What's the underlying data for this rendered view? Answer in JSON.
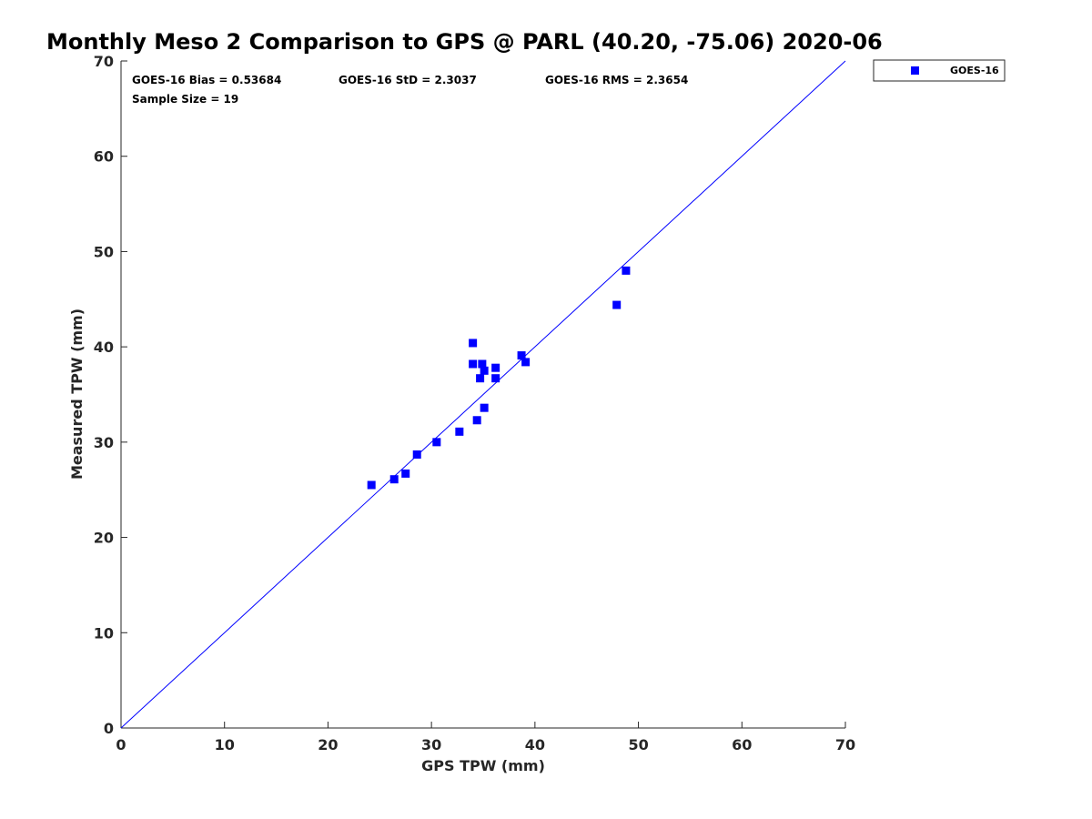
{
  "chart_data": {
    "type": "scatter",
    "title": "Monthly Meso 2 Comparison to GPS @ PARL (40.20, -75.06) 2020-06",
    "xlabel": "GPS TPW (mm)",
    "ylabel": "Measured TPW (mm)",
    "xlim": [
      0,
      70
    ],
    "ylim": [
      0,
      70
    ],
    "xticks": [
      0,
      10,
      20,
      30,
      40,
      50,
      60,
      70
    ],
    "yticks": [
      0,
      10,
      20,
      30,
      40,
      50,
      60,
      70
    ],
    "grid": false,
    "legend_position": "outside-top-right",
    "reference_line": {
      "from": [
        0,
        0
      ],
      "to": [
        70,
        70
      ],
      "color": "#0000ff"
    },
    "annotations": [
      "GOES-16 Bias = 0.53684",
      "GOES-16 StD = 2.3037",
      "GOES-16 RMS = 2.3654",
      "Sample Size = 19"
    ],
    "series": [
      {
        "name": "GOES-16",
        "color": "#0000ff",
        "marker": "square",
        "points": [
          [
            24.2,
            25.5
          ],
          [
            26.4,
            26.1
          ],
          [
            27.5,
            26.7
          ],
          [
            28.6,
            28.7
          ],
          [
            30.5,
            30.0
          ],
          [
            32.7,
            31.1
          ],
          [
            34.0,
            40.4
          ],
          [
            34.0,
            38.2
          ],
          [
            34.4,
            32.3
          ],
          [
            34.7,
            36.7
          ],
          [
            34.9,
            38.2
          ],
          [
            35.1,
            37.5
          ],
          [
            35.1,
            33.6
          ],
          [
            36.2,
            37.8
          ],
          [
            36.2,
            36.7
          ],
          [
            38.7,
            39.1
          ],
          [
            39.1,
            38.4
          ],
          [
            47.9,
            44.4
          ],
          [
            48.8,
            48.0
          ]
        ]
      }
    ]
  }
}
